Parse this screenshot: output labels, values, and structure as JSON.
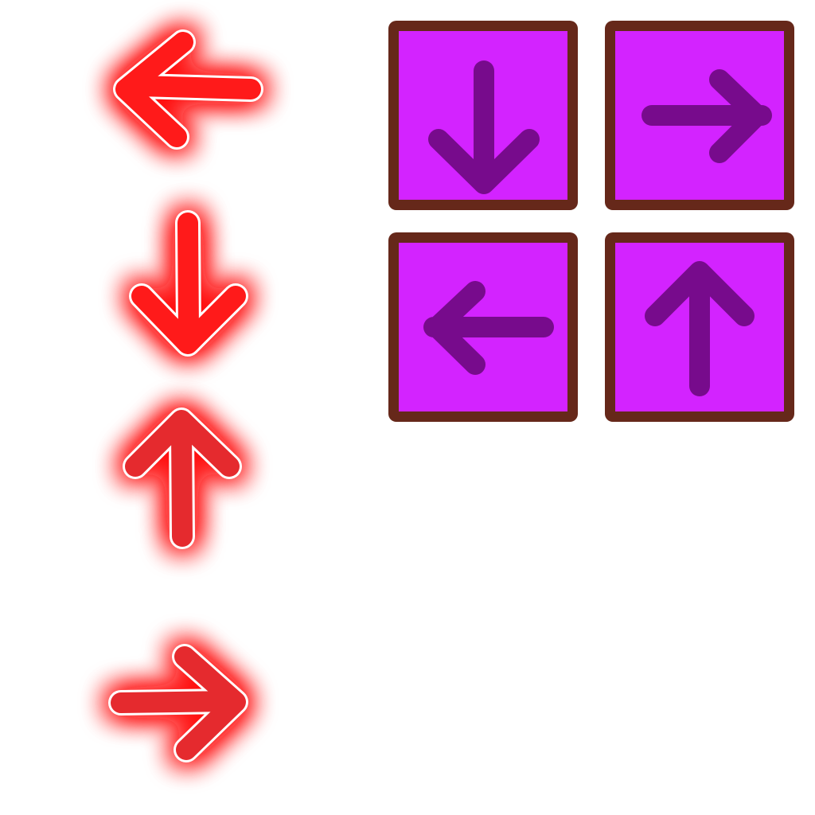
{
  "colors": {
    "background": "#ffffff",
    "glow_red": "#ff1010",
    "glow_arrow_fill": "#ff1a1a",
    "glow_arrow_fill_alt": "#e52a2e",
    "arrow_outline": "#ffffff",
    "pad_fill": "#d323ff",
    "pad_border": "#66281a",
    "pad_arrow": "#770b8c"
  },
  "glow_arrows": [
    {
      "direction": "left",
      "icon": "left-arrow-icon"
    },
    {
      "direction": "down",
      "icon": "down-arrow-icon"
    },
    {
      "direction": "up",
      "icon": "up-arrow-icon"
    },
    {
      "direction": "right",
      "icon": "right-arrow-icon"
    }
  ],
  "pad_arrows": [
    {
      "direction": "down",
      "icon": "down-arrow-icon"
    },
    {
      "direction": "right",
      "icon": "right-arrow-icon"
    },
    {
      "direction": "left",
      "icon": "left-arrow-icon"
    },
    {
      "direction": "up",
      "icon": "up-arrow-icon"
    }
  ]
}
